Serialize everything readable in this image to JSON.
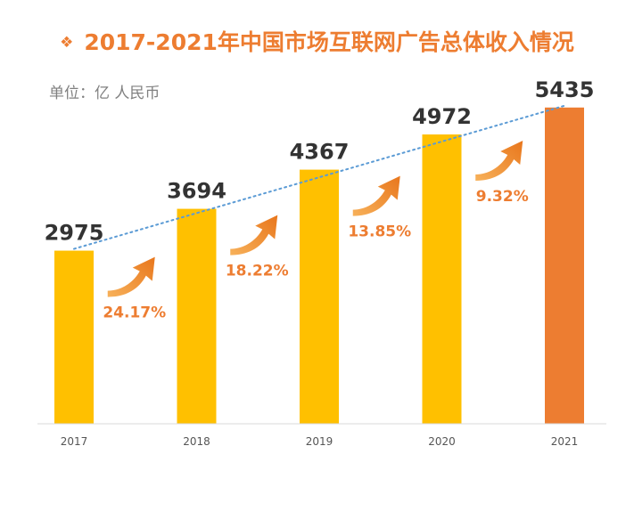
{
  "title": "2017-2021年中国市场互联网广告总体收入情况",
  "title_bullet": "❖",
  "unit": "单位：亿 人民币",
  "colors": {
    "bar": "#FFC000",
    "bar_highlight": "#ED7D31",
    "growth": "#ED7D31",
    "trend": "#5B9BD5"
  },
  "chart_data": {
    "type": "bar",
    "title": "2017-2021年中国市场互联网广告总体收入情况",
    "ylabel": "单位：亿 人民币",
    "categories": [
      "2017",
      "2018",
      "2019",
      "2020",
      "2021"
    ],
    "values": [
      2975,
      3694,
      4367,
      4972,
      5435
    ],
    "growth_rates": [
      "24.17%",
      "18.22%",
      "13.85%",
      "9.32%"
    ],
    "highlight_category": "2021",
    "trendline": "dotted",
    "ylim": [
      0,
      5600
    ],
    "grid": false,
    "legend": "none"
  }
}
